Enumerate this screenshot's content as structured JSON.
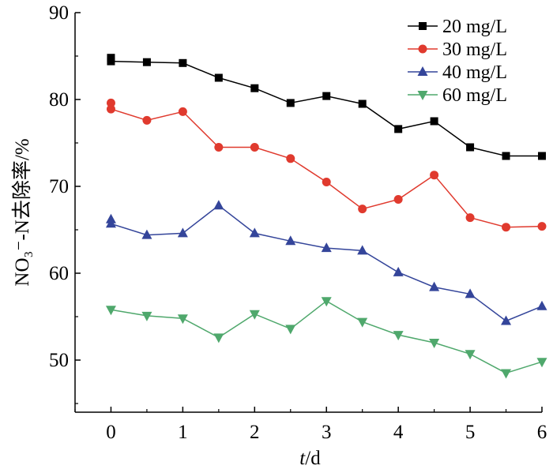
{
  "chart_data": {
    "type": "line",
    "x_ticks": [
      0,
      1,
      2,
      3,
      4,
      5,
      6
    ],
    "y_ticks": [
      50,
      60,
      70,
      80,
      90
    ],
    "xlim": [
      -0.5,
      6
    ],
    "ylim": [
      44,
      90
    ],
    "xlabel_parts": {
      "italic": "t",
      "rest": "/d"
    },
    "ylabel": "NO₃⁻-N去除率/%",
    "legend_position": "top-right",
    "series": [
      {
        "name": "20 mg/L",
        "color": "#000000",
        "marker": "square",
        "points": [
          [
            0,
            84.8
          ],
          [
            0,
            84.4
          ],
          [
            0.5,
            84.3
          ],
          [
            1,
            84.2
          ],
          [
            1.5,
            82.5
          ],
          [
            2,
            81.3
          ],
          [
            2.5,
            79.6
          ],
          [
            3,
            80.4
          ],
          [
            3.5,
            79.5
          ],
          [
            4,
            76.6
          ],
          [
            4.5,
            77.5
          ],
          [
            5,
            74.5
          ],
          [
            5.5,
            73.5
          ],
          [
            6,
            73.5
          ]
        ]
      },
      {
        "name": "30 mg/L",
        "color": "#e03a2e",
        "marker": "circle",
        "points": [
          [
            0,
            79.6
          ],
          [
            0,
            78.9
          ],
          [
            0.5,
            77.6
          ],
          [
            1,
            78.6
          ],
          [
            1.5,
            74.5
          ],
          [
            2,
            74.5
          ],
          [
            2.5,
            73.2
          ],
          [
            3,
            70.5
          ],
          [
            3.5,
            67.4
          ],
          [
            4,
            68.5
          ],
          [
            4.5,
            71.3
          ],
          [
            5,
            66.4
          ],
          [
            5.5,
            65.3
          ],
          [
            6,
            65.4
          ]
        ]
      },
      {
        "name": "40 mg/L",
        "color": "#34459a",
        "marker": "triangle-up",
        "points": [
          [
            0,
            66.2
          ],
          [
            0,
            65.7
          ],
          [
            0.5,
            64.4
          ],
          [
            1,
            64.6
          ],
          [
            1.5,
            67.8
          ],
          [
            2,
            64.6
          ],
          [
            2.5,
            63.7
          ],
          [
            3,
            62.9
          ],
          [
            3.5,
            62.6
          ],
          [
            4,
            60.1
          ],
          [
            4.5,
            58.4
          ],
          [
            5,
            57.6
          ],
          [
            5.5,
            54.5
          ],
          [
            6,
            56.2
          ]
        ]
      },
      {
        "name": "60 mg/L",
        "color": "#4fa86c",
        "marker": "triangle-down",
        "points": [
          [
            0,
            55.8
          ],
          [
            0.5,
            55.1
          ],
          [
            1,
            54.8
          ],
          [
            1.5,
            52.6
          ],
          [
            2,
            55.3
          ],
          [
            2.5,
            53.6
          ],
          [
            3,
            56.8
          ],
          [
            3.5,
            54.4
          ],
          [
            4,
            52.9
          ],
          [
            4.5,
            52.0
          ],
          [
            5,
            50.7
          ],
          [
            5.5,
            48.5
          ],
          [
            6,
            49.8
          ]
        ]
      }
    ]
  }
}
